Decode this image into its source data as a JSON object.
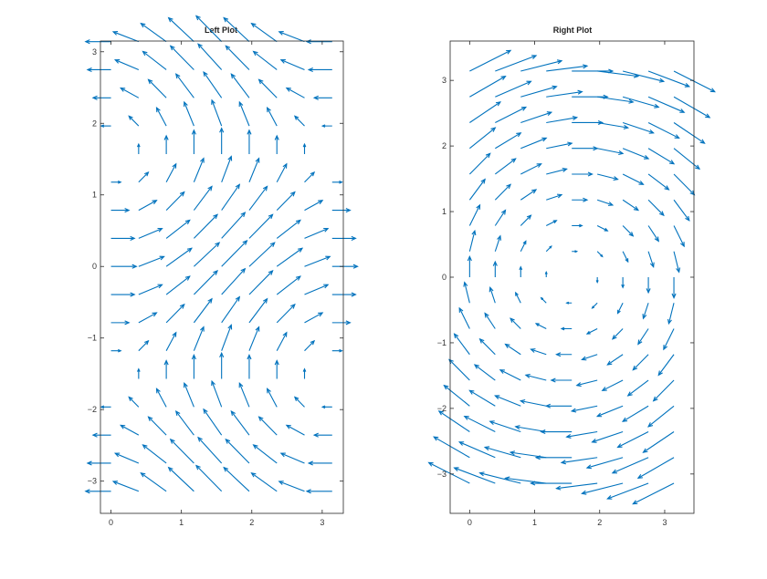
{
  "chart_data": [
    {
      "type": "quiver",
      "title": "Left Plot",
      "xlabel": "",
      "ylabel": "",
      "xlim": [
        -0.15,
        3.3
      ],
      "ylim": [
        -3.45,
        3.15
      ],
      "x_ticks": [
        0,
        1,
        2,
        3
      ],
      "x_tick_labels": [
        "0",
        "1",
        "2",
        "3"
      ],
      "y_ticks": [
        -3,
        -2,
        -1,
        0,
        1,
        2,
        3
      ],
      "y_tick_labels": [
        "−3",
        "−2",
        "−1",
        "0",
        "1",
        "2",
        "3"
      ],
      "grid": false,
      "field": {
        "u": "cos(y)",
        "v": "sin(x)",
        "x_grid": [
          0,
          0.3927,
          0.7854,
          1.1781,
          1.5708,
          1.9635,
          2.3562,
          2.7489,
          3.1416
        ],
        "y_grid": [
          -3.1416,
          -2.7489,
          -2.3562,
          -1.9635,
          -1.5708,
          -1.1781,
          -0.7854,
          -0.3927,
          0,
          0.3927,
          0.7854,
          1.1781,
          1.5708,
          1.9635,
          2.3562,
          2.7489,
          3.1416
        ],
        "arrow_scale": 0.36
      },
      "color": "#0072BD"
    },
    {
      "type": "quiver",
      "title": "Right Plot",
      "xlabel": "",
      "ylabel": "",
      "xlim": [
        -0.3,
        3.45
      ],
      "ylim": [
        -3.6,
        3.6
      ],
      "x_ticks": [
        0,
        1,
        2,
        3
      ],
      "x_tick_labels": [
        "0",
        "1",
        "2",
        "3"
      ],
      "y_ticks": [
        -3,
        -2,
        -1,
        0,
        1,
        2,
        3
      ],
      "y_tick_labels": [
        "−3",
        "−2",
        "−1",
        "0",
        "1",
        "2",
        "3"
      ],
      "grid": false,
      "field": {
        "u": "y",
        "v": "-(x - pi/2)",
        "x_grid": [
          0,
          0.3927,
          0.7854,
          1.1781,
          1.5708,
          1.9635,
          2.3562,
          2.7489,
          3.1416
        ],
        "y_grid": [
          -3.1416,
          -2.7489,
          -2.3562,
          -1.9635,
          -1.5708,
          -1.1781,
          -0.7854,
          -0.3927,
          0,
          0.3927,
          0.7854,
          1.1781,
          1.5708,
          1.9635,
          2.3562,
          2.7489,
          3.1416
        ],
        "arrow_scale": 0.2
      },
      "color": "#0072BD"
    }
  ]
}
